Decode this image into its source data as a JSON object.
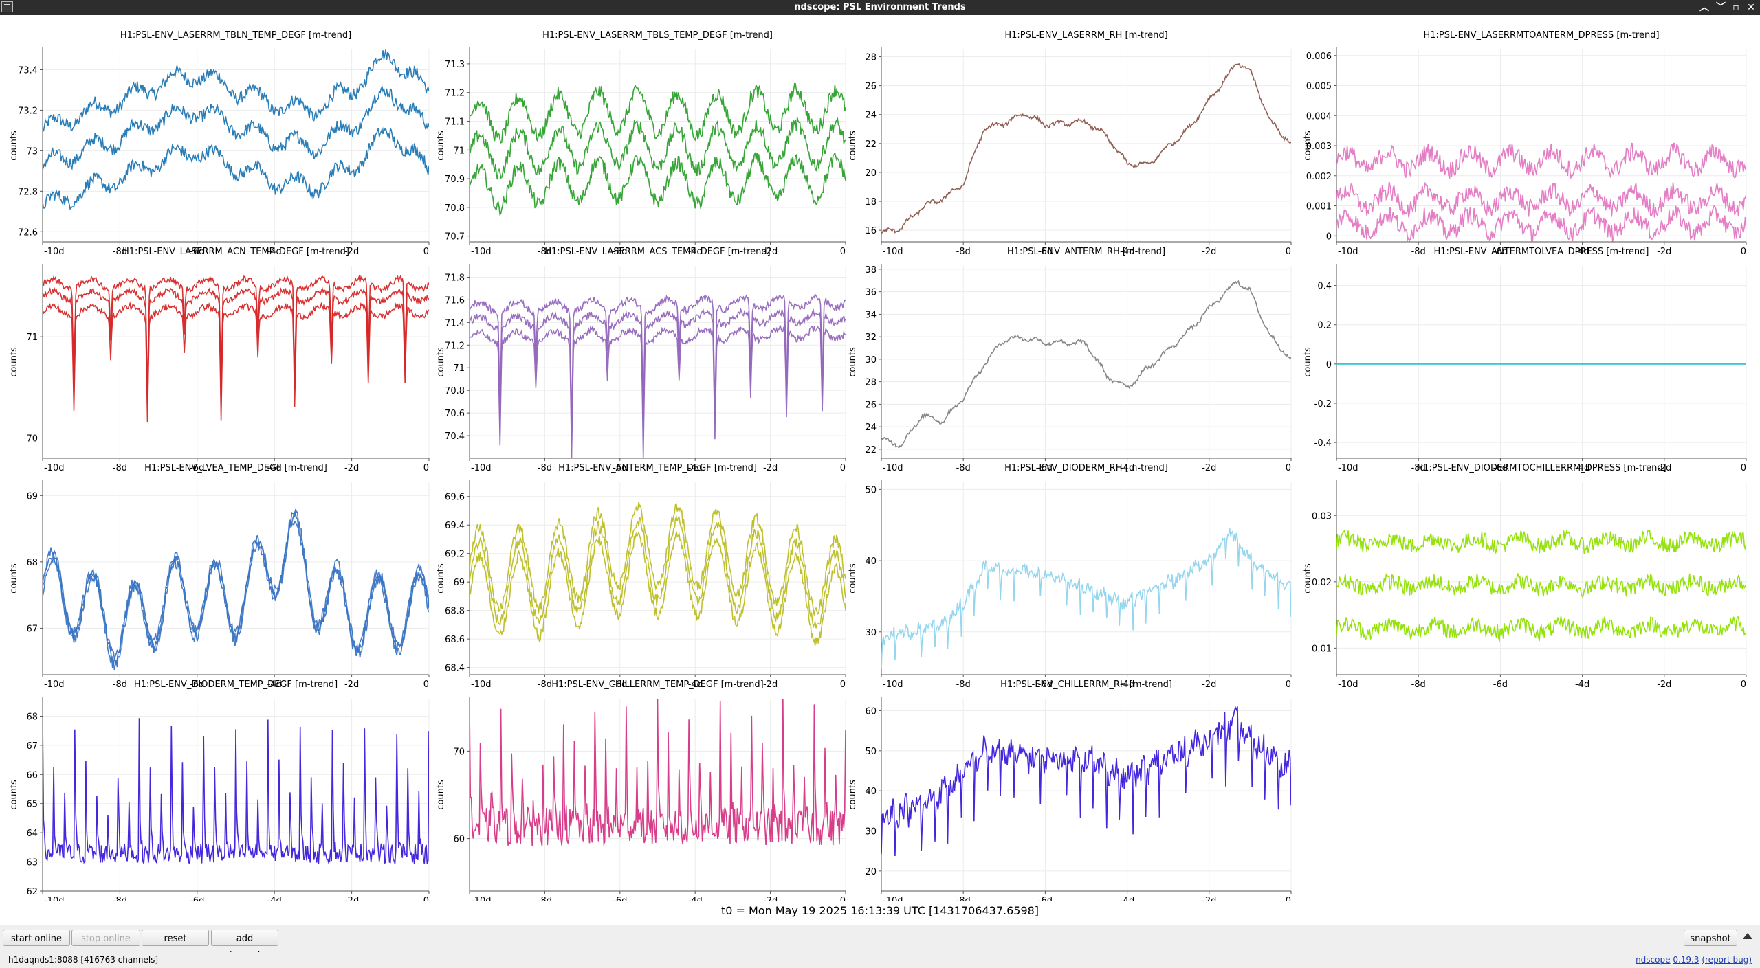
{
  "window": {
    "title": "ndscope: PSL Environment Trends"
  },
  "t0": "t0 = Mon May 19 2025 16:13:39 UTC [1431706437.6598]",
  "toolbar": {
    "start_online": "start online",
    "stop_online": "stop online",
    "reset": "reset",
    "add_channels": "add channels",
    "snapshot": "snapshot"
  },
  "status": {
    "server": "h1daqnds1:8088",
    "channels": "[416763 channels]",
    "app": "ndscope",
    "version": "0.19.3",
    "report": "(report bug)"
  },
  "chart_data": [
    {
      "type": "line",
      "title": "H1:PSL-ENV_LASERRM_TBLN_TEMP_DEGF [m-trend]",
      "ylabel": "counts",
      "color": "#1f77b4",
      "xlim": [
        -10,
        0
      ],
      "ylim": [
        72.55,
        73.5
      ],
      "yticks": [
        72.6,
        72.8,
        73,
        73.2,
        73.4
      ],
      "xticks": [
        -10,
        -8,
        -6,
        -4,
        -2,
        0
      ],
      "xticklabels": [
        "-10d",
        "-8d",
        "-6d",
        "-4d",
        "-2d",
        "0"
      ],
      "style": "band",
      "base": [
        [
          -10,
          72.92
        ],
        [
          -9,
          73.0
        ],
        [
          -8,
          73.06
        ],
        [
          -7,
          73.15
        ],
        [
          -6,
          73.2
        ],
        [
          -5,
          73.12
        ],
        [
          -4,
          73.05
        ],
        [
          -3,
          73.02
        ],
        [
          -2,
          73.12
        ],
        [
          -1,
          73.3
        ],
        [
          0,
          73.1
        ]
      ],
      "bands": [
        0.18,
        0,
        -0.2
      ],
      "osc": 0.04,
      "noise": 0.03
    },
    {
      "type": "line",
      "title": "H1:PSL-ENV_LASERRM_TBLS_TEMP_DEGF [m-trend]",
      "ylabel": "counts",
      "color": "#2ca02c",
      "xlim": [
        -10,
        0
      ],
      "ylim": [
        70.68,
        71.35
      ],
      "yticks": [
        70.7,
        70.8,
        70.9,
        71,
        71.1,
        71.2,
        71.3
      ],
      "xticks": [
        -10,
        -8,
        -6,
        -4,
        -2,
        0
      ],
      "xticklabels": [
        "-10d",
        "-8d",
        "-6d",
        "-4d",
        "-2d",
        "0"
      ],
      "style": "band",
      "base": [
        [
          -10,
          70.98
        ],
        [
          -8,
          71.0
        ],
        [
          -6,
          71.02
        ],
        [
          -4,
          71.0
        ],
        [
          -2,
          71.02
        ],
        [
          0,
          71.02
        ]
      ],
      "bands": [
        0.12,
        0,
        -0.12
      ],
      "osc": 0.07,
      "noise": 0.025
    },
    {
      "type": "line",
      "title": "H1:PSL-ENV_LASERRM_RH [m-trend]",
      "ylabel": "counts",
      "color": "#8c564b",
      "xlim": [
        -10,
        0
      ],
      "ylim": [
        15.2,
        28.5
      ],
      "yticks": [
        16,
        18,
        20,
        22,
        24,
        26,
        28
      ],
      "xticks": [
        -10,
        -8,
        -6,
        -4,
        -2,
        0
      ],
      "xticklabels": [
        "-10d",
        "-8d",
        "-6d",
        "-4d",
        "-2d",
        "0"
      ],
      "style": "line",
      "base": [
        [
          -10,
          15.8
        ],
        [
          -9.5,
          16.2
        ],
        [
          -9,
          17.6
        ],
        [
          -8.5,
          18.2
        ],
        [
          -8,
          19.2
        ],
        [
          -7.5,
          23.0
        ],
        [
          -7,
          23.4
        ],
        [
          -6.5,
          24.1
        ],
        [
          -6,
          23.3
        ],
        [
          -5,
          23.5
        ],
        [
          -4.5,
          22.5
        ],
        [
          -4,
          20.6
        ],
        [
          -3.5,
          20.5
        ],
        [
          -3,
          21.8
        ],
        [
          -2.5,
          23.0
        ],
        [
          -2,
          25.0
        ],
        [
          -1.3,
          27.6
        ],
        [
          -1,
          27.0
        ],
        [
          -0.5,
          23.5
        ],
        [
          0,
          22.0
        ]
      ],
      "bands": [
        0
      ],
      "osc": 0.15,
      "noise": 0.12
    },
    {
      "type": "line",
      "title": "H1:PSL-ENV_LASERRMTOANTERM_DPRESS [m-trend]",
      "ylabel": "counts",
      "color": "#e377c2",
      "xlim": [
        -10,
        0
      ],
      "ylim": [
        -0.0002,
        0.0062
      ],
      "yticks": [
        0,
        0.001,
        0.002,
        0.003,
        0.004,
        0.005,
        0.006
      ],
      "xticks": [
        -10,
        -8,
        -6,
        -4,
        -2,
        0
      ],
      "xticklabels": [
        "-10d",
        "-8d",
        "-6d",
        "-4d",
        "-2d",
        "0"
      ],
      "style": "dpress",
      "base": [
        [
          -10,
          0.0012
        ],
        [
          0,
          0.0012
        ]
      ],
      "bands": [
        0.0013,
        0,
        -0.0008
      ],
      "osc": 0.0003,
      "noise": 0.0003
    },
    {
      "type": "line",
      "title": "H1:PSL-ENV_LASERRM_ACN_TEMP_DEGF [m-trend]",
      "ylabel": "counts",
      "color": "#d62728",
      "xlim": [
        -10,
        0
      ],
      "ylim": [
        69.8,
        71.7
      ],
      "yticks": [
        70,
        71
      ],
      "xticks": [
        -10,
        -8,
        -6,
        -4,
        -2,
        0
      ],
      "xticklabels": [
        "-10d",
        "-8d",
        "-6d",
        "-4d",
        "-2d",
        "0"
      ],
      "style": "dips",
      "base": [
        [
          -10,
          71.4
        ],
        [
          0,
          71.4
        ]
      ],
      "bands": [
        0.12,
        0,
        -0.15
      ],
      "osc": 0.05,
      "noise": 0.03
    },
    {
      "type": "line",
      "title": "H1:PSL-ENV_LASERRM_ACS_TEMP_DEGF [m-trend]",
      "ylabel": "counts",
      "color": "#9467bd",
      "xlim": [
        -10,
        0
      ],
      "ylim": [
        70.2,
        71.9
      ],
      "yticks": [
        70.4,
        70.6,
        70.8,
        71,
        71.2,
        71.4,
        71.6,
        71.8
      ],
      "xticks": [
        -10,
        -8,
        -6,
        -4,
        -2,
        0
      ],
      "xticklabels": [
        "-10d",
        "-8d",
        "-6d",
        "-4d",
        "-2d",
        "0"
      ],
      "style": "dips",
      "base": [
        [
          -10,
          71.4
        ],
        [
          0,
          71.45
        ]
      ],
      "bands": [
        0.13,
        0,
        -0.14
      ],
      "osc": 0.05,
      "noise": 0.03
    },
    {
      "type": "line",
      "title": "H1:PSL-ENV_ANTERM_RH [m-trend]",
      "ylabel": "counts",
      "color": "#7f7f7f",
      "xlim": [
        -10,
        0
      ],
      "ylim": [
        21.2,
        38.3
      ],
      "yticks": [
        22,
        24,
        26,
        28,
        30,
        32,
        34,
        36,
        38
      ],
      "xticks": [
        -10,
        -8,
        -6,
        -4,
        -2,
        0
      ],
      "xticklabels": [
        "-10d",
        "-8d",
        "-6d",
        "-4d",
        "-2d",
        "0"
      ],
      "style": "line",
      "base": [
        [
          -10,
          22.8
        ],
        [
          -9.5,
          22.4
        ],
        [
          -9,
          25.0
        ],
        [
          -8.5,
          24.5
        ],
        [
          -8,
          26.6
        ],
        [
          -7.5,
          29.5
        ],
        [
          -7,
          31.8
        ],
        [
          -6.5,
          31.9
        ],
        [
          -6,
          31.5
        ],
        [
          -5,
          31.4
        ],
        [
          -4.5,
          28.5
        ],
        [
          -4,
          27.5
        ],
        [
          -3.5,
          29.2
        ],
        [
          -3,
          30.8
        ],
        [
          -2.5,
          32.5
        ],
        [
          -2,
          34.5
        ],
        [
          -1.3,
          37.0
        ],
        [
          -1,
          36.0
        ],
        [
          -0.5,
          32.0
        ],
        [
          0,
          30.0
        ]
      ],
      "bands": [
        0
      ],
      "osc": 0.2,
      "noise": 0.15
    },
    {
      "type": "line",
      "title": "H1:PSL-ENV_ANTERMTOLVEA_DPRESS [m-trend]",
      "ylabel": "counts",
      "color": "#17becf",
      "xlim": [
        -10,
        0
      ],
      "ylim": [
        -0.48,
        0.5
      ],
      "yticks": [
        -0.4,
        -0.2,
        0,
        0.2,
        0.4
      ],
      "xticks": [
        -10,
        -8,
        -6,
        -4,
        -2,
        0
      ],
      "xticklabels": [
        "-10d",
        "-8d",
        "-6d",
        "-4d",
        "-2d",
        "0"
      ],
      "style": "flat",
      "base": [
        [
          -10,
          0
        ],
        [
          0,
          0
        ]
      ],
      "bands": [
        0
      ],
      "osc": 0,
      "noise": 0
    },
    {
      "type": "line",
      "title": "H1:PSL-ENV_LVEA_TEMP_DEGF [m-trend]",
      "ylabel": "counts",
      "color": "#3a75c4",
      "xlim": [
        -10,
        0
      ],
      "ylim": [
        66.3,
        69.2
      ],
      "yticks": [
        67,
        68,
        69
      ],
      "xticks": [
        -10,
        -8,
        -6,
        -4,
        -2,
        0
      ],
      "xticklabels": [
        "-10d",
        "-8d",
        "-6d",
        "-4d",
        "-2d",
        "0"
      ],
      "style": "wave",
      "base": [
        [
          -10,
          67.6
        ],
        [
          -9,
          67.4
        ],
        [
          -8,
          67.0
        ],
        [
          -6.5,
          67.5
        ],
        [
          -5,
          67.4
        ],
        [
          -3.6,
          68.3
        ],
        [
          -3,
          67.6
        ],
        [
          -2,
          67.2
        ],
        [
          0,
          67.3
        ]
      ],
      "bands": [
        0.06,
        0,
        -0.06
      ],
      "osc": 0.55,
      "noise": 0.08
    },
    {
      "type": "line",
      "title": "H1:PSL-ENV_ANTERM_TEMP_DEGF [m-trend]",
      "ylabel": "counts",
      "color": "#bcbd22",
      "xlim": [
        -10,
        0
      ],
      "ylim": [
        68.35,
        69.7
      ],
      "yticks": [
        68.4,
        68.6,
        68.8,
        69,
        69.2,
        69.4,
        69.6
      ],
      "xticks": [
        -10,
        -8,
        -6,
        -4,
        -2,
        0
      ],
      "xticklabels": [
        "-10d",
        "-8d",
        "-6d",
        "-4d",
        "-2d",
        "0"
      ],
      "style": "wave",
      "base": [
        [
          -10,
          69.0
        ],
        [
          -8,
          69.0
        ],
        [
          -6,
          69.15
        ],
        [
          -4,
          69.15
        ],
        [
          -2,
          69.05
        ],
        [
          0,
          68.9
        ]
      ],
      "bands": [
        0.1,
        0,
        -0.1
      ],
      "osc": 0.28,
      "noise": 0.04
    },
    {
      "type": "line",
      "title": "H1:PSL-ENV_DIODERM_RH [m-trend]",
      "ylabel": "counts",
      "color": "#8fd4ee",
      "xlim": [
        -10,
        0
      ],
      "ylim": [
        24,
        51
      ],
      "yticks": [
        30,
        40,
        50
      ],
      "xticks": [
        -10,
        -8,
        -6,
        -4,
        -2,
        0
      ],
      "xticklabels": [
        "-10d",
        "-8d",
        "-6d",
        "-4d",
        "-2d",
        "0"
      ],
      "style": "saw",
      "base": [
        [
          -10,
          29
        ],
        [
          -8.5,
          31
        ],
        [
          -8,
          34
        ],
        [
          -7.5,
          39
        ],
        [
          -6,
          38
        ],
        [
          -5,
          36
        ],
        [
          -4,
          34
        ],
        [
          -3,
          37
        ],
        [
          -2,
          40
        ],
        [
          -1.5,
          44
        ],
        [
          -1,
          40
        ],
        [
          0,
          36
        ]
      ],
      "bands": [
        0
      ],
      "osc": 3.0,
      "noise": 0.8
    },
    {
      "type": "line",
      "title": "H1:PSL-ENV_DIODERMTOCHILLERRM_DPRESS [m-trend]",
      "ylabel": "counts",
      "color": "#8fe000",
      "xlim": [
        -10,
        0
      ],
      "ylim": [
        0.006,
        0.035
      ],
      "yticks": [
        0.01,
        0.02,
        0.03
      ],
      "xticks": [
        -10,
        -8,
        -6,
        -4,
        -2,
        0
      ],
      "xticklabels": [
        "-10d",
        "-8d",
        "-6d",
        "-4d",
        "-2d",
        "0"
      ],
      "style": "band",
      "base": [
        [
          -10,
          0.0195
        ],
        [
          0,
          0.0195
        ]
      ],
      "bands": [
        0.0065,
        0,
        -0.0065
      ],
      "osc": 0.0006,
      "noise": 0.0012
    },
    {
      "type": "line",
      "title": "H1:PSL-ENV_DIODERM_TEMP_DEGF [m-trend]",
      "ylabel": "counts",
      "color": "#3b1bdc",
      "xlim": [
        -10,
        0
      ],
      "ylim": [
        62,
        68.6
      ],
      "yticks": [
        62,
        63,
        64,
        65,
        66,
        67,
        68
      ],
      "xticks": [
        -10,
        -8,
        -6,
        -4,
        -2,
        0
      ],
      "xticklabels": [
        "-10d",
        "-8d",
        "-6d",
        "-4d",
        "-2d",
        "0"
      ],
      "style": "spikes",
      "base": [
        [
          -10,
          63.5
        ],
        [
          0,
          63.5
        ]
      ],
      "bands": [
        0
      ],
      "osc": 4.3,
      "noise": 0.35
    },
    {
      "type": "line",
      "title": "H1:PSL-ENV_CHILLERRM_TEMP_DEGF [m-trend]",
      "ylabel": "counts",
      "color": "#d63384",
      "xlim": [
        -10,
        0
      ],
      "ylim": [
        54,
        76
      ],
      "yticks": [
        60,
        70
      ],
      "xticks": [
        -10,
        -8,
        -6,
        -4,
        -2,
        0
      ],
      "xticklabels": [
        "-10d",
        "-8d",
        "-6d",
        "-4d",
        "-2d",
        "0"
      ],
      "style": "spikes",
      "base": [
        [
          -10,
          62
        ],
        [
          0,
          62
        ]
      ],
      "bands": [
        0
      ],
      "osc": 13,
      "noise": 2.2
    },
    {
      "type": "line",
      "title": "H1:PSL-ENV_CHILLERRM_RH [m-trend]",
      "ylabel": "counts",
      "color": "#3b1bdc",
      "xlim": [
        -10,
        0
      ],
      "ylim": [
        15,
        63
      ],
      "yticks": [
        20,
        30,
        40,
        50,
        60
      ],
      "xticks": [
        -10,
        -8,
        -6,
        -4,
        -2,
        0
      ],
      "xticklabels": [
        "-10d",
        "-8d",
        "-6d",
        "-4d",
        "-2d",
        "0"
      ],
      "style": "saw",
      "base": [
        [
          -10,
          34
        ],
        [
          -9,
          36
        ],
        [
          -8,
          44
        ],
        [
          -7.5,
          50
        ],
        [
          -6,
          48
        ],
        [
          -5,
          48
        ],
        [
          -4,
          43
        ],
        [
          -3,
          48
        ],
        [
          -2,
          53
        ],
        [
          -1.3,
          57
        ],
        [
          -1,
          52
        ],
        [
          0,
          46
        ]
      ],
      "bands": [
        0
      ],
      "osc": 10,
      "noise": 3
    }
  ]
}
